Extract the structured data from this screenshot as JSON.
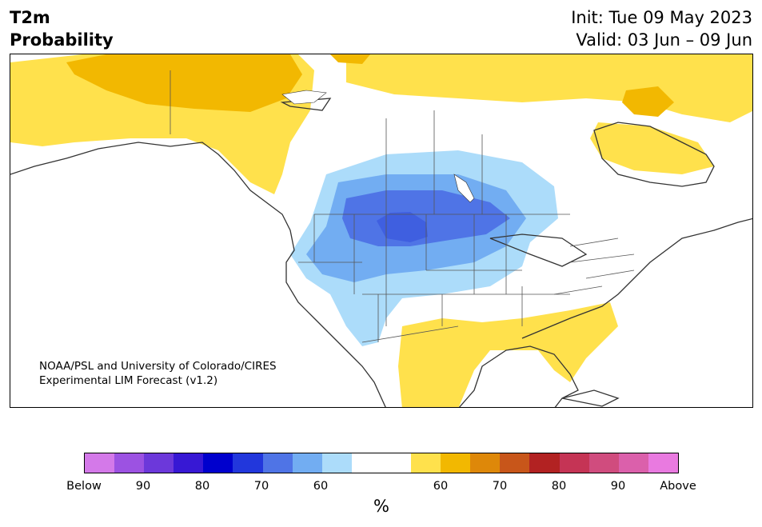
{
  "title": {
    "left_line1": "T2m",
    "left_line2": "Probability",
    "right_line1": "Init: Tue 09 May 2023",
    "right_line2": "Valid: 03 Jun – 09 Jun"
  },
  "credit": {
    "line1": "NOAA/PSL and University of Colorado/CIRES",
    "line2": "Experimental LIM Forecast (v1.2)"
  },
  "colorbar": {
    "colors": [
      "#d479e9",
      "#9c52e2",
      "#6c38da",
      "#3718d4",
      "#0000cd",
      "#2237dc",
      "#4f74e6",
      "#72adf2",
      "#acdcfa",
      "#ffffff",
      "#ffffff",
      "#ffe14c",
      "#f2b801",
      "#de8809",
      "#c8561a",
      "#b22222",
      "#c53455",
      "#d04c7e",
      "#db60ab",
      "#e97ae0"
    ],
    "tick_labels": [
      "Below",
      "90",
      "80",
      "70",
      "60",
      "60",
      "70",
      "80",
      "90",
      "Above"
    ],
    "unit": "%"
  },
  "map_legend_colors": {
    "above_light": "#ffe14c",
    "above_mid": "#f2b801",
    "below_light": "#acdcfa",
    "below_mid": "#72adf2",
    "below_strong": "#4f74e6",
    "below_strongest": "#3f5fe0"
  }
}
